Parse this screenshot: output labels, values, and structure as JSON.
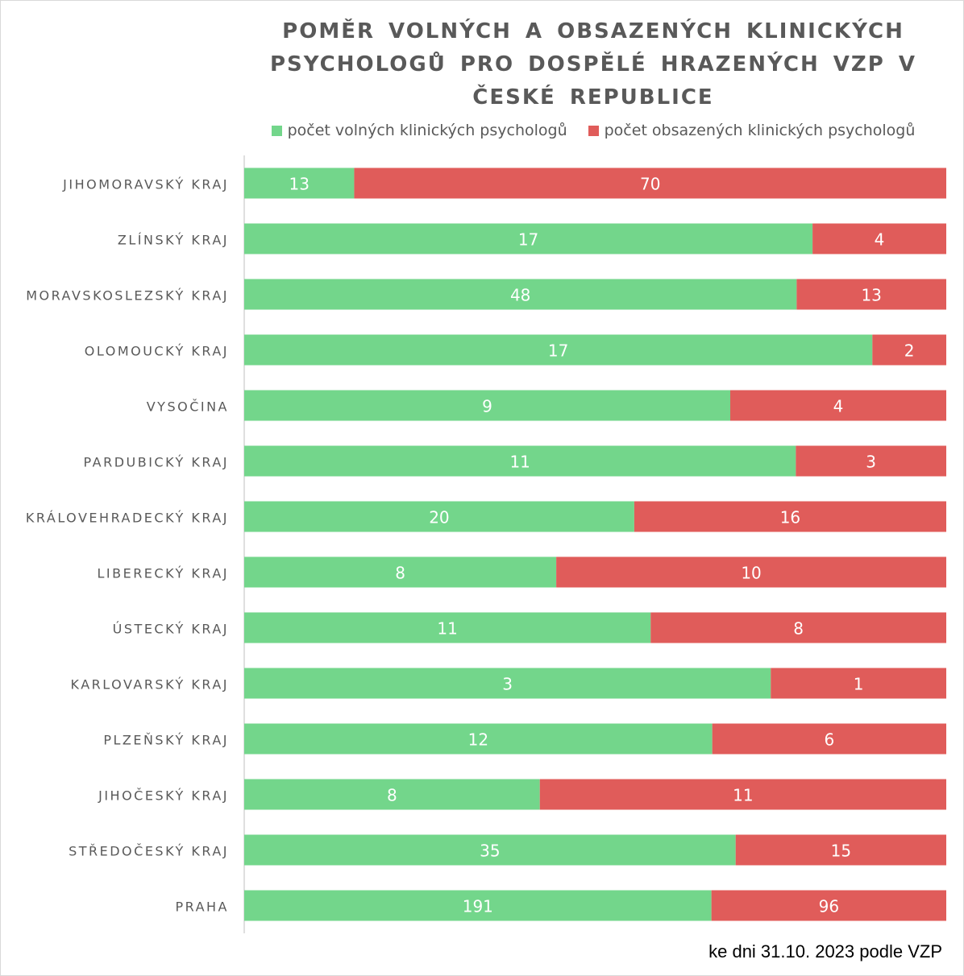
{
  "chart_data": {
    "type": "bar",
    "orientation": "horizontal",
    "stacked": "100%",
    "title": "POMĚR VOLNÝCH A OBSAZENÝCH KLINICKÝCH PSYCHOLOGŮ PRO DOSPĚLÉ HRAZENÝCH VZP V ČESKÉ REPUBLICE",
    "categories": [
      "JIHOMORAVSKÝ KRAJ",
      "ZLÍNSKÝ KRAJ",
      "MORAVSKOSLEZSKÝ KRAJ",
      "OLOMOUCKÝ KRAJ",
      "VYSOČINA",
      "PARDUBICKÝ KRAJ",
      "KRÁLOVEHRADECKÝ KRAJ",
      "LIBERECKÝ KRAJ",
      "ÚSTECKÝ KRAJ",
      "KARLOVARSKÝ KRAJ",
      "PLZEŇSKÝ KRAJ",
      "JIHOČESKÝ KRAJ",
      "STŘEDOČESKÝ KRAJ",
      "PRAHA"
    ],
    "series": [
      {
        "name": "počet volných klinických psychologů",
        "color": "#73D68B",
        "values": [
          13,
          17,
          48,
          17,
          9,
          11,
          20,
          8,
          11,
          3,
          12,
          8,
          35,
          191
        ]
      },
      {
        "name": "počet obsazených klinických psychologů",
        "color": "#E05C5A",
        "values": [
          70,
          4,
          13,
          2,
          4,
          3,
          16,
          10,
          8,
          1,
          6,
          11,
          15,
          96
        ]
      }
    ],
    "legend_position": "top",
    "grid": false,
    "data_labels": true
  },
  "footnote": "ke dni 31.10. 2023 podle VZP"
}
